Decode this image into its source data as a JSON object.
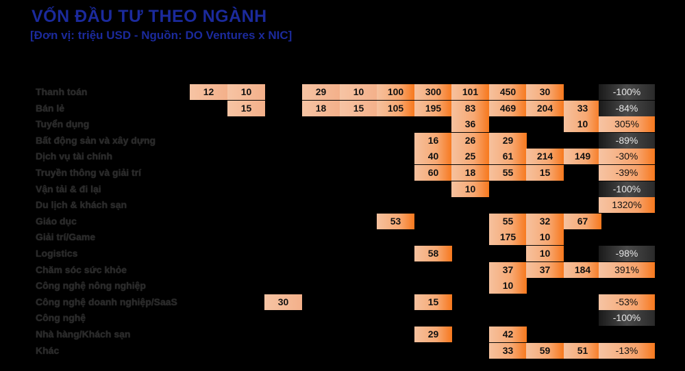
{
  "header": {
    "title": "VỐN ĐẦU TƯ THEO NGÀNH",
    "subtitle": "[Đơn vị: triệu USD - Nguồn: DO Ventures x NIC]"
  },
  "colors": {
    "title": "#1b2a9c",
    "cell_light": "#f6c4a4",
    "cell_dark": "#f7781d",
    "negative_bg": "#3a3a3a"
  },
  "rows": [
    {
      "label": "Thanh toán"
    },
    {
      "label": "Bán lẻ"
    },
    {
      "label": "Tuyển dụng"
    },
    {
      "label": "Bất động sản và xây dựng"
    },
    {
      "label": "Dịch vụ tài chính"
    },
    {
      "label": "Truyền thông và giải trí"
    },
    {
      "label": "Vận tải & đi lại"
    },
    {
      "label": "Du lịch & khách sạn"
    },
    {
      "label": "Giáo dục"
    },
    {
      "label": "Giải trí/Game"
    },
    {
      "label": "Logistics"
    },
    {
      "label": "Chăm sóc sức khỏe"
    },
    {
      "label": "Công nghệ nông nghiệp"
    },
    {
      "label": "Công nghệ doanh nghiệp/SaaS"
    },
    {
      "label": "Công nghệ"
    },
    {
      "label": "Nhà hàng/Khách sạn"
    },
    {
      "label": "Khác"
    }
  ],
  "chart_data": {
    "type": "table",
    "title": "VỐN ĐẦU TƯ THEO NGÀNH",
    "subtitle": "[Đơn vị: triệu USD - Nguồn: DO Ventures x NIC]",
    "columns": [
      "c1",
      "c2",
      "c3",
      "c4",
      "c5",
      "c6",
      "c7",
      "c8",
      "c9",
      "c10",
      "c11",
      "c12",
      "change"
    ],
    "rows": [
      {
        "label": "Thanh toán",
        "values": [
          12,
          10,
          null,
          29,
          10,
          100,
          300,
          101,
          450,
          30,
          null
        ],
        "change": "-100%"
      },
      {
        "label": "Bán lẻ",
        "values": [
          null,
          15,
          null,
          18,
          15,
          105,
          195,
          83,
          469,
          204,
          33
        ],
        "change": "-84%"
      },
      {
        "label": "Tuyển dụng",
        "values": [
          null,
          null,
          null,
          null,
          null,
          null,
          null,
          36,
          null,
          null,
          10
        ],
        "change": "305%"
      },
      {
        "label": "Bất động sản và xây dựng",
        "values": [
          null,
          null,
          null,
          null,
          null,
          null,
          16,
          26,
          29,
          null,
          null
        ],
        "change": "-89%"
      },
      {
        "label": "Dịch vụ tài chính",
        "values": [
          null,
          null,
          null,
          null,
          null,
          null,
          40,
          25,
          61,
          214,
          149
        ],
        "change": "-30%"
      },
      {
        "label": "Truyền thông và giải trí",
        "values": [
          null,
          null,
          null,
          null,
          null,
          null,
          60,
          18,
          55,
          15,
          null
        ],
        "change": "-39%"
      },
      {
        "label": "Vận tải & đi lại",
        "values": [
          null,
          null,
          null,
          null,
          null,
          null,
          null,
          10,
          null,
          null,
          null
        ],
        "change": "-100%"
      },
      {
        "label": "Du lịch & khách sạn",
        "values": [
          null,
          null,
          null,
          null,
          null,
          null,
          null,
          null,
          null,
          null,
          null
        ],
        "change": "1320%"
      },
      {
        "label": "Giáo dục",
        "values": [
          null,
          null,
          null,
          null,
          null,
          53,
          null,
          null,
          55,
          32,
          67
        ],
        "change": null
      },
      {
        "label": "Giải trí/Game",
        "values": [
          null,
          null,
          null,
          null,
          null,
          null,
          null,
          null,
          175,
          10,
          null
        ],
        "change": null
      },
      {
        "label": "Logistics",
        "values": [
          null,
          null,
          null,
          null,
          null,
          null,
          58,
          null,
          null,
          10,
          null
        ],
        "change": "-98%"
      },
      {
        "label": "Chăm sóc sức khỏe",
        "values": [
          null,
          null,
          null,
          null,
          null,
          null,
          null,
          null,
          37,
          37,
          184
        ],
        "change": "391%"
      },
      {
        "label": "Công nghệ nông nghiệp",
        "values": [
          null,
          null,
          null,
          null,
          null,
          null,
          null,
          null,
          10,
          null,
          null
        ],
        "change": null
      },
      {
        "label": "Công nghệ doanh nghiệp/SaaS",
        "values": [
          null,
          null,
          30,
          null,
          null,
          null,
          15,
          null,
          null,
          null,
          null
        ],
        "change": "-53%"
      },
      {
        "label": "Công nghệ",
        "values": [
          null,
          null,
          null,
          null,
          null,
          null,
          null,
          null,
          null,
          null,
          null
        ],
        "change": "-100%"
      },
      {
        "label": "Nhà hàng/Khách sạn",
        "values": [
          null,
          null,
          null,
          null,
          null,
          null,
          29,
          null,
          42,
          null,
          null
        ],
        "change": null
      },
      {
        "label": "Khác",
        "values": [
          null,
          null,
          null,
          null,
          null,
          null,
          null,
          null,
          33,
          59,
          51
        ],
        "change": "-13%"
      }
    ]
  }
}
